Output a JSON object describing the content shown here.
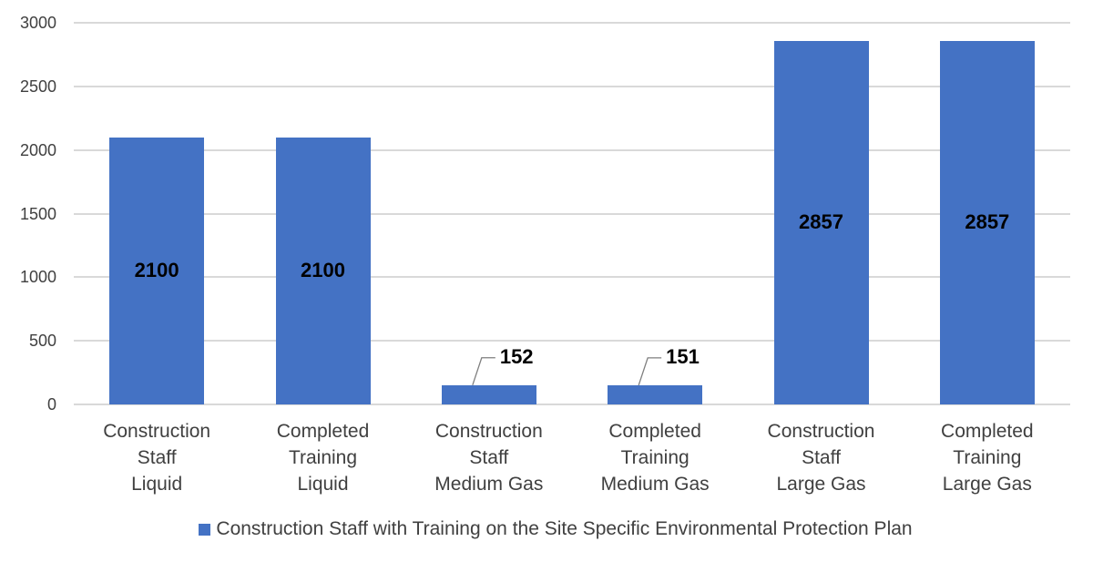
{
  "chart_data": {
    "type": "bar",
    "title": "",
    "xlabel": "",
    "ylabel": "",
    "ylim": [
      0,
      3000
    ],
    "yticks": [
      0,
      500,
      1000,
      1500,
      2000,
      2500,
      3000
    ],
    "grid": true,
    "legend_position": "bottom",
    "categories": [
      "Construction Staff Liquid",
      "Completed Training Liquid",
      "Construction Staff Medium Gas",
      "Completed Training Medium Gas",
      "Construction Staff Large Gas",
      "Completed Training Large Gas"
    ],
    "category_lines": [
      [
        "Construction",
        "Staff",
        "Liquid"
      ],
      [
        "Completed",
        "Training",
        "Liquid"
      ],
      [
        "Construction",
        "Staff",
        "Medium Gas"
      ],
      [
        "Completed",
        "Training",
        "Medium Gas"
      ],
      [
        "Construction",
        "Staff",
        "Large Gas"
      ],
      [
        "Completed",
        "Training",
        "Large Gas"
      ]
    ],
    "series": [
      {
        "name": "Construction Staff with Training on the Site Specific Environmental Protection Plan",
        "color": "#4472c4",
        "values": [
          2100,
          2100,
          152,
          151,
          2857,
          2857
        ]
      }
    ],
    "data_labels": [
      "2100",
      "2100",
      "152",
      "151",
      "2857",
      "2857"
    ]
  },
  "axis": {
    "ytick_labels": [
      "3000",
      "2500",
      "2000",
      "1500",
      "1000",
      "500",
      "0"
    ]
  },
  "legend": {
    "label": "Construction Staff with Training on the Site Specific Environmental Protection Plan",
    "color": "#4472c4"
  }
}
